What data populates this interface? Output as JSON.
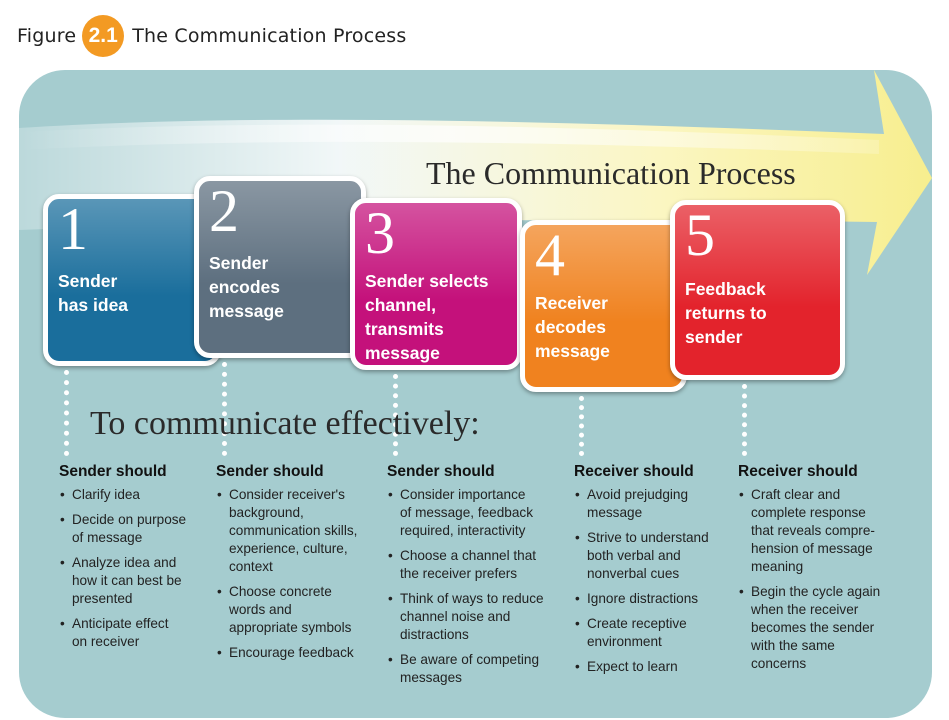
{
  "figure": {
    "word": "Figure",
    "number": "2.1",
    "title": "The Communication Process"
  },
  "diagram": {
    "title": "The Communication Process",
    "subtitle": "To communicate effectively:",
    "steps": [
      {
        "number": "1",
        "label": "Sender\nhas idea",
        "color": "#1a6e9c"
      },
      {
        "number": "2",
        "label": "Sender\nencodes\nmessage",
        "color": "#5d6f7f"
      },
      {
        "number": "3",
        "label": "Sender selects\nchannel,\ntransmits\nmessage",
        "color": "#c4117b"
      },
      {
        "number": "4",
        "label": "Receiver\ndecodes\nmessage",
        "color": "#f0821f"
      },
      {
        "number": "5",
        "label": "Feedback\nreturns to\nsender",
        "color": "#e3232c"
      }
    ],
    "columns": [
      {
        "heading": "Sender should",
        "items": [
          "Clarify idea",
          "Decide on purpose\nof message",
          "Analyze idea and\nhow it can best be\npresented",
          "Anticipate effect\non receiver"
        ]
      },
      {
        "heading": "Sender should",
        "items": [
          "Consider receiver's\nbackground,\ncommunication skills,\nexperience, culture,\ncontext",
          "Choose concrete\nwords and\nappropriate symbols",
          "Encourage feedback"
        ]
      },
      {
        "heading": "Sender should",
        "items": [
          "Consider importance\nof message, feedback\nrequired, interactivity",
          "Choose a channel that\nthe receiver prefers",
          "Think of  ways to reduce\nchannel noise and\ndistractions",
          "Be aware of competing\nmessages"
        ]
      },
      {
        "heading": "Receiver should",
        "items": [
          "Avoid prejudging\nmessage",
          "Strive to understand\nboth verbal and\nnonverbal cues",
          "Ignore distractions",
          "Create receptive\nenvironment",
          "Expect to learn"
        ]
      },
      {
        "heading": "Receiver should",
        "items": [
          "Craft clear and\ncomplete response\nthat reveals compre-\nhension of message\nmeaning",
          "Begin the cycle again\nwhen the receiver\nbecomes the sender\nwith the same\nconcerns"
        ]
      }
    ]
  }
}
